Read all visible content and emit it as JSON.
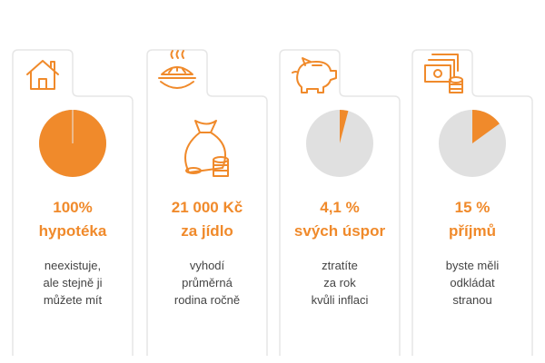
{
  "cards": [
    {
      "headline": [
        "100%",
        "hypotéka"
      ],
      "text": [
        "neexistuje,",
        "ale stejně ji",
        "můžete mít"
      ],
      "pie": 100
    },
    {
      "headline": [
        "21 000 Kč",
        "za jídlo"
      ],
      "text": [
        "vyhodí",
        "průměrná",
        "rodina ročně"
      ]
    },
    {
      "headline": [
        "4,1 %",
        "svých úspor"
      ],
      "text": [
        "ztratíte",
        "za rok",
        "kvůli inflaci"
      ],
      "pie": 4.1
    },
    {
      "headline": [
        "15 %",
        "příjmů"
      ],
      "text": [
        "byste měli",
        "odkládat",
        "stranou"
      ],
      "pie": 15
    }
  ]
}
